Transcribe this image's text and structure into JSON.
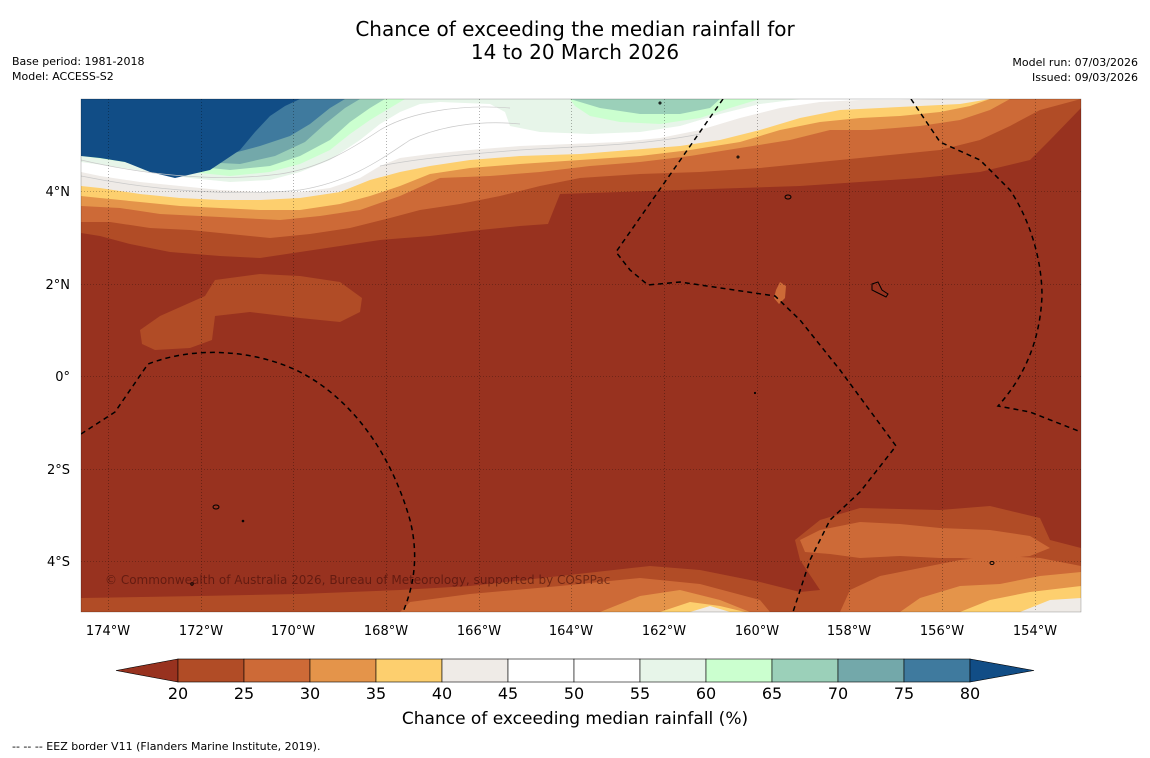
{
  "title": {
    "line1": "Chance of exceeding the median rainfall for",
    "line2": "14 to 20 March 2026"
  },
  "meta_left": {
    "base_period": "Base period: 1981-2018",
    "model": "Model: ACCESS-S2"
  },
  "meta_right": {
    "model_run": "Model run: 07/03/2026",
    "issued": "Issued: 09/03/2026"
  },
  "map": {
    "lat_labels": [
      "4°N",
      "2°N",
      "0°",
      "2°S",
      "4°S"
    ],
    "lon_labels": [
      "174°W",
      "172°W",
      "170°W",
      "168°W",
      "166°W",
      "164°W",
      "162°W",
      "160°W",
      "158°W",
      "156°W",
      "154°W"
    ],
    "copyright": "© Commonwealth of Australia 2026, Bureau of Meteorology, supported by COSPPac"
  },
  "colorbar": {
    "ticks": [
      "20",
      "25",
      "30",
      "35",
      "40",
      "45",
      "50",
      "55",
      "60",
      "65",
      "70",
      "75",
      "80"
    ],
    "colors": [
      "#98321f",
      "#b14c26",
      "#cd6a37",
      "#e4944a",
      "#fdcf6e",
      "#efebe7",
      "#ffffff",
      "#ffffff",
      "#e7f5e9",
      "#cbffcf",
      "#9bd0b9",
      "#73a8aa",
      "#3f7a9e",
      "#114d86"
    ],
    "label": "Chance of exceeding median rainfall (%)"
  },
  "footnote": "--  --  -- EEZ border V11 (Flanders Marine Institute, 2019)."
}
